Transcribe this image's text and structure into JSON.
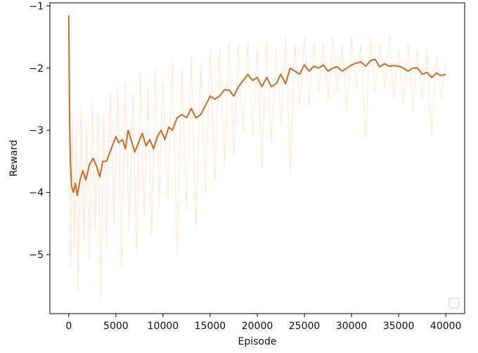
{
  "chart_data": {
    "type": "line",
    "title": "",
    "xlabel": "Episode",
    "ylabel": "Reward",
    "xlim": [
      -2000,
      42000
    ],
    "ylim": [
      -5.95,
      -0.95
    ],
    "xticks": [
      0,
      5000,
      10000,
      15000,
      20000,
      25000,
      30000,
      35000,
      40000
    ],
    "yticks": [
      -5,
      -4,
      -3,
      -2,
      -1
    ],
    "xtick_labels": [
      "0",
      "5000",
      "10000",
      "15000",
      "20000",
      "25000",
      "30000",
      "35000",
      "40000"
    ],
    "ytick_labels": [
      "−5",
      "−4",
      "−3",
      "−2",
      "−1"
    ],
    "grid": false,
    "legend": {
      "location": "lower right",
      "entries": []
    },
    "colors": {
      "smoothed": "#d2691e",
      "raw": "#fde8d6"
    },
    "series": [
      {
        "role": "smoothed",
        "x": [
          0,
          100,
          200,
          300,
          500,
          700,
          900,
          1200,
          1500,
          1800,
          2200,
          2600,
          3000,
          3300,
          3600,
          4000,
          4500,
          5000,
          5300,
          5700,
          6000,
          6300,
          6700,
          7000,
          7400,
          7800,
          8200,
          8600,
          9000,
          9400,
          9800,
          10200,
          10600,
          11000,
          11500,
          12000,
          12500,
          13000,
          13500,
          14000,
          14500,
          15000,
          15500,
          16000,
          16500,
          17000,
          17500,
          18000,
          18500,
          19000,
          19500,
          20000,
          20500,
          21000,
          21500,
          22000,
          22500,
          23000,
          23500,
          24000,
          24500,
          25000,
          25500,
          26000,
          26500,
          27000,
          27500,
          28000,
          28500,
          29000,
          29500,
          30000,
          30500,
          31000,
          31500,
          32000,
          32500,
          33000,
          33500,
          34000,
          34500,
          35000,
          35500,
          36000,
          36500,
          37000,
          37500,
          38000,
          38500,
          39000,
          39500,
          40000
        ],
        "y": [
          -1.15,
          -3.0,
          -3.6,
          -3.9,
          -4.0,
          -3.85,
          -4.05,
          -3.8,
          -3.65,
          -3.8,
          -3.55,
          -3.45,
          -3.6,
          -3.75,
          -3.5,
          -3.5,
          -3.3,
          -3.1,
          -3.2,
          -3.15,
          -3.3,
          -3.0,
          -3.2,
          -3.35,
          -3.2,
          -3.05,
          -3.25,
          -3.15,
          -3.3,
          -3.1,
          -3.0,
          -3.15,
          -2.95,
          -3.0,
          -2.8,
          -2.75,
          -2.8,
          -2.65,
          -2.8,
          -2.75,
          -2.6,
          -2.45,
          -2.5,
          -2.45,
          -2.35,
          -2.35,
          -2.45,
          -2.3,
          -2.2,
          -2.1,
          -2.2,
          -2.15,
          -2.3,
          -2.15,
          -2.3,
          -2.25,
          -2.1,
          -2.25,
          -2.0,
          -2.05,
          -2.1,
          -1.95,
          -2.05,
          -1.97,
          -2.0,
          -1.95,
          -2.05,
          -2.0,
          -1.98,
          -2.05,
          -2.0,
          -1.95,
          -1.92,
          -1.9,
          -1.97,
          -1.88,
          -1.86,
          -1.98,
          -1.93,
          -1.97,
          -1.96,
          -1.97,
          -2.0,
          -2.05,
          -2.0,
          -2.0,
          -2.1,
          -2.07,
          -2.15,
          -2.08,
          -2.12,
          -2.1
        ]
      },
      {
        "role": "raw",
        "x": [
          0,
          200,
          400,
          600,
          800,
          1000,
          1300,
          1600,
          1900,
          2200,
          2500,
          2800,
          3100,
          3400,
          3700,
          4000,
          4400,
          4800,
          5200,
          5600,
          6000,
          6400,
          6800,
          7200,
          7600,
          8000,
          8400,
          8800,
          9200,
          9600,
          10000,
          10500,
          11000,
          11500,
          12000,
          12500,
          13000,
          13500,
          14000,
          14500,
          15000,
          15500,
          16000,
          16500,
          17000,
          17500,
          18000,
          18500,
          19000,
          19500,
          20000,
          20500,
          21000,
          21500,
          22000,
          22500,
          23000,
          23500,
          24000,
          24500,
          25000,
          25500,
          26000,
          26500,
          27000,
          27500,
          28000,
          28500,
          29000,
          29500,
          30000,
          30500,
          31000,
          31500,
          32000,
          32500,
          33000,
          33500,
          34000,
          34500,
          35000,
          35500,
          36000,
          36500,
          37000,
          37500,
          38000,
          38500,
          39000,
          39500,
          40000
        ],
        "y": [
          -1.2,
          -5.2,
          -2.8,
          -4.9,
          -3.0,
          -5.6,
          -2.6,
          -4.8,
          -2.9,
          -5.1,
          -2.5,
          -4.6,
          -2.7,
          -5.7,
          -2.8,
          -4.9,
          -2.4,
          -4.5,
          -2.3,
          -5.2,
          -2.2,
          -4.6,
          -2.4,
          -5.0,
          -2.1,
          -4.4,
          -2.3,
          -4.7,
          -2.0,
          -4.2,
          -2.2,
          -4.1,
          -1.9,
          -5.0,
          -2.0,
          -4.3,
          -1.8,
          -4.6,
          -1.9,
          -4.0,
          -1.7,
          -3.8,
          -1.7,
          -3.6,
          -1.6,
          -3.4,
          -1.6,
          -3.0,
          -1.6,
          -3.1,
          -1.7,
          -3.6,
          -1.6,
          -3.2,
          -1.7,
          -2.9,
          -1.5,
          -3.7,
          -1.6,
          -2.6,
          -1.5,
          -2.6,
          -1.6,
          -2.4,
          -1.6,
          -2.5,
          -1.5,
          -2.4,
          -1.6,
          -2.7,
          -1.5,
          -2.3,
          -1.6,
          -3.1,
          -1.5,
          -2.4,
          -1.6,
          -2.3,
          -1.5,
          -2.5,
          -1.7,
          -2.6,
          -1.6,
          -2.7,
          -1.7,
          -2.5,
          -1.7,
          -3.1,
          -1.8,
          -2.5,
          -1.9
        ]
      }
    ]
  }
}
